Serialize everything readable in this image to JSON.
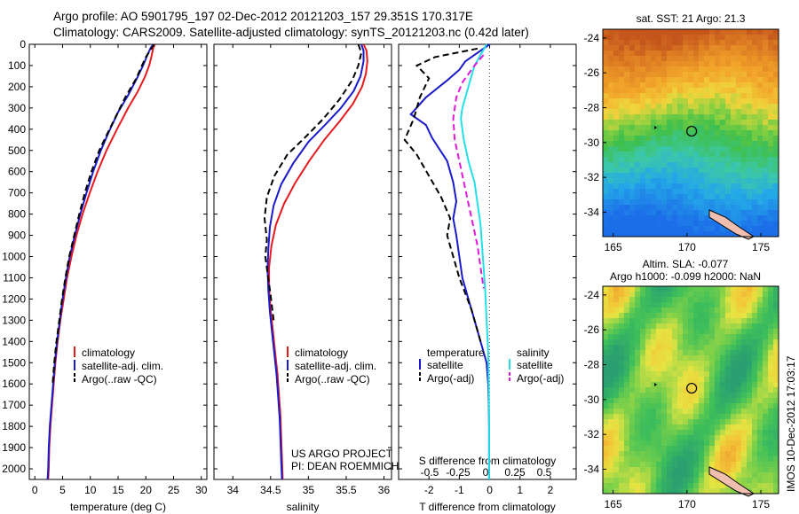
{
  "header": {
    "title_line1": "Argo profile: AO 5901795_197 02-Dec-2012 20121203_157 29.351S 170.317E",
    "title_line2": "Climatology: CARS2009. Satellite-adjusted climatology: synTS_20121203.nc (0.42d later)"
  },
  "footer": {
    "project_line1": "US ARGO PROJECT",
    "project_line2": "PI: DEAN ROEMMICH",
    "stamp": "IMOS 10-Dec-2012 17:03:17"
  },
  "colors": {
    "climatology": "#e8191e",
    "satellite": "#1a1acb",
    "argo": "#000000",
    "sal_satellite": "#22e0e6",
    "sal_argo": "#e01ad8",
    "axis": "#000000",
    "land": "#f0bfb0"
  },
  "chart_data": [
    {
      "type": "line",
      "xlabel": "temperature (deg C)",
      "ylabel": "",
      "xlim": [
        -1,
        31
      ],
      "ylim": [
        2050,
        0
      ],
      "xticks": [
        0,
        5,
        10,
        15,
        20,
        25,
        30
      ],
      "yticks": [
        0,
        100,
        200,
        300,
        400,
        500,
        600,
        700,
        800,
        900,
        1000,
        1100,
        1200,
        1300,
        1400,
        1500,
        1600,
        1700,
        1800,
        1900,
        2000
      ],
      "legend": [
        "climatology",
        "satellite-adj. clim.",
        "Argo(..raw -QC)"
      ],
      "legend_position": "lower-right",
      "series": [
        {
          "name": "climatology",
          "style": "solid",
          "points": [
            [
              21.6,
              0
            ],
            [
              21.3,
              20
            ],
            [
              21.0,
              60
            ],
            [
              20.6,
              100
            ],
            [
              19.9,
              150
            ],
            [
              18.6,
              220
            ],
            [
              16.8,
              300
            ],
            [
              14.8,
              400
            ],
            [
              12.9,
              500
            ],
            [
              11.3,
              600
            ],
            [
              9.9,
              700
            ],
            [
              8.6,
              800
            ],
            [
              7.5,
              900
            ],
            [
              6.6,
              1000
            ],
            [
              5.8,
              1100
            ],
            [
              5.2,
              1200
            ],
            [
              4.6,
              1300
            ],
            [
              4.1,
              1400
            ],
            [
              3.7,
              1500
            ],
            [
              3.4,
              1600
            ],
            [
              3.1,
              1700
            ],
            [
              2.8,
              1800
            ],
            [
              2.6,
              1900
            ],
            [
              2.5,
              2000
            ],
            [
              2.4,
              2050
            ]
          ]
        },
        {
          "name": "satellite-adj. clim.",
          "style": "solid",
          "points": [
            [
              21.3,
              0
            ],
            [
              20.8,
              20
            ],
            [
              20.3,
              50
            ],
            [
              19.5,
              100
            ],
            [
              18.4,
              160
            ],
            [
              16.8,
              240
            ],
            [
              15.0,
              320
            ],
            [
              13.2,
              420
            ],
            [
              11.9,
              500
            ],
            [
              10.5,
              600
            ],
            [
              9.3,
              700
            ],
            [
              8.2,
              800
            ],
            [
              7.2,
              900
            ],
            [
              6.3,
              1000
            ],
            [
              5.6,
              1100
            ],
            [
              5.0,
              1200
            ],
            [
              4.5,
              1300
            ],
            [
              4.0,
              1400
            ],
            [
              3.6,
              1500
            ],
            [
              3.3,
              1600
            ],
            [
              3.0,
              1700
            ],
            [
              2.7,
              1800
            ],
            [
              2.5,
              1900
            ],
            [
              2.4,
              2000
            ],
            [
              2.3,
              2050
            ]
          ]
        },
        {
          "name": "Argo(..raw -QC)",
          "style": "dash",
          "points": [
            [
              21.5,
              0
            ],
            [
              21.0,
              20
            ],
            [
              20.0,
              60
            ],
            [
              19.3,
              100
            ],
            [
              18.3,
              160
            ],
            [
              16.3,
              250
            ],
            [
              14.6,
              340
            ],
            [
              12.9,
              430
            ],
            [
              11.6,
              500
            ],
            [
              10.2,
              600
            ],
            [
              9.0,
              700
            ],
            [
              8.0,
              800
            ],
            [
              7.1,
              900
            ],
            [
              6.2,
              1000
            ],
            [
              5.5,
              1100
            ],
            [
              4.9,
              1200
            ],
            [
              4.4,
              1300
            ],
            [
              3.9,
              1400
            ],
            [
              3.5,
              1500
            ],
            [
              3.2,
              1600
            ]
          ]
        }
      ]
    },
    {
      "type": "line",
      "xlabel": "salinity",
      "ylabel": "",
      "xlim": [
        33.75,
        36.1
      ],
      "ylim": [
        2050,
        0
      ],
      "xticks": [
        34,
        34.5,
        35,
        35.5,
        36
      ],
      "legend": [
        "climatology",
        "satellite-adj. clim.",
        "Argo(..raw -QC)"
      ],
      "legend_position": "lower-right",
      "series": [
        {
          "name": "climatology",
          "style": "solid",
          "points": [
            [
              35.73,
              0
            ],
            [
              35.77,
              30
            ],
            [
              35.78,
              80
            ],
            [
              35.76,
              140
            ],
            [
              35.71,
              200
            ],
            [
              35.59,
              280
            ],
            [
              35.42,
              360
            ],
            [
              35.21,
              450
            ],
            [
              35.01,
              550
            ],
            [
              34.83,
              650
            ],
            [
              34.68,
              750
            ],
            [
              34.57,
              850
            ],
            [
              34.51,
              950
            ],
            [
              34.48,
              1050
            ],
            [
              34.48,
              1150
            ],
            [
              34.5,
              1250
            ],
            [
              34.53,
              1350
            ],
            [
              34.56,
              1450
            ],
            [
              34.59,
              1550
            ],
            [
              34.61,
              1650
            ],
            [
              34.63,
              1750
            ],
            [
              34.64,
              1850
            ],
            [
              34.65,
              1950
            ],
            [
              34.66,
              2050
            ]
          ]
        },
        {
          "name": "satellite-adj. clim.",
          "style": "solid",
          "points": [
            [
              35.7,
              0
            ],
            [
              35.73,
              30
            ],
            [
              35.73,
              80
            ],
            [
              35.69,
              150
            ],
            [
              35.6,
              220
            ],
            [
              35.43,
              300
            ],
            [
              35.22,
              380
            ],
            [
              35.0,
              460
            ],
            [
              34.8,
              560
            ],
            [
              34.64,
              660
            ],
            [
              34.54,
              760
            ],
            [
              34.49,
              860
            ],
            [
              34.47,
              960
            ],
            [
              34.46,
              1060
            ],
            [
              34.47,
              1160
            ],
            [
              34.49,
              1260
            ],
            [
              34.52,
              1360
            ],
            [
              34.55,
              1460
            ],
            [
              34.58,
              1560
            ],
            [
              34.6,
              1660
            ],
            [
              34.62,
              1760
            ],
            [
              34.63,
              1860
            ],
            [
              34.64,
              1960
            ],
            [
              34.65,
              2050
            ]
          ]
        },
        {
          "name": "Argo(..raw -QC)",
          "style": "dash",
          "points": [
            [
              35.66,
              0
            ],
            [
              35.7,
              40
            ],
            [
              35.66,
              100
            ],
            [
              35.58,
              170
            ],
            [
              35.41,
              260
            ],
            [
              35.2,
              350
            ],
            [
              34.98,
              430
            ],
            [
              34.72,
              520
            ],
            [
              34.55,
              620
            ],
            [
              34.45,
              720
            ],
            [
              34.42,
              820
            ],
            [
              34.45,
              920
            ],
            [
              34.43,
              1000
            ],
            [
              34.46,
              1080
            ],
            [
              34.5,
              1180
            ],
            [
              34.54,
              1300
            ]
          ]
        }
      ]
    },
    {
      "type": "line",
      "xlabel": "T difference from climatology",
      "xlabel_top": "S difference from climatology",
      "ylabel": "",
      "xlim": [
        -3,
        2.85
      ],
      "ylim": [
        2050,
        0
      ],
      "xticks": [
        -2,
        -1,
        0,
        1,
        2
      ],
      "xticks_s_labels": [
        "-0.5",
        "-0.25",
        "0",
        "0.25",
        "0.5"
      ],
      "zero_line": "dotted",
      "legend_title_temperature": "temperature",
      "legend_title_salinity": "salinity",
      "legend": [
        "satellite",
        "Argo(-adj)",
        "satellite",
        "Argo(-adj)"
      ],
      "legend_position": "lower-right",
      "series": [
        {
          "name": "satellite",
          "group": "temperature",
          "style": "solid",
          "points": [
            [
              0.0,
              0
            ],
            [
              -0.3,
              30
            ],
            [
              -0.8,
              80
            ],
            [
              -1.0,
              120
            ],
            [
              -1.4,
              170
            ],
            [
              -2.1,
              250
            ],
            [
              -2.6,
              330
            ],
            [
              -2.1,
              380
            ],
            [
              -1.9,
              440
            ],
            [
              -1.4,
              550
            ],
            [
              -1.2,
              650
            ],
            [
              -1.1,
              740
            ],
            [
              -1.2,
              820
            ],
            [
              -1.1,
              900
            ],
            [
              -1.0,
              1000
            ],
            [
              -0.9,
              1100
            ],
            [
              -0.7,
              1200
            ],
            [
              -0.5,
              1300
            ],
            [
              -0.3,
              1400
            ],
            [
              -0.1,
              1500
            ],
            [
              -0.05,
              1600
            ],
            [
              -0.03,
              1700
            ],
            [
              -0.02,
              1800
            ],
            [
              -0.02,
              1900
            ],
            [
              -0.02,
              2050
            ]
          ]
        },
        {
          "name": "Argo(-adj)",
          "group": "temperature",
          "style": "dash",
          "points": [
            [
              -0.4,
              20
            ],
            [
              -1.8,
              60
            ],
            [
              -2.4,
              100
            ],
            [
              -2.0,
              160
            ],
            [
              -2.3,
              250
            ],
            [
              -2.5,
              350
            ],
            [
              -2.8,
              450
            ],
            [
              -2.4,
              520
            ],
            [
              -2.0,
              620
            ],
            [
              -1.6,
              720
            ],
            [
              -1.3,
              820
            ],
            [
              -1.4,
              900
            ],
            [
              -1.2,
              1000
            ],
            [
              -1.0,
              1100
            ],
            [
              -0.6,
              1250
            ],
            [
              -0.3,
              1400
            ]
          ]
        },
        {
          "name": "satellite",
          "group": "salinity",
          "style": "solid",
          "points": [
            [
              -0.1,
              0
            ],
            [
              -0.3,
              50
            ],
            [
              -0.5,
              100
            ],
            [
              -0.7,
              200
            ],
            [
              -0.9,
              300
            ],
            [
              -0.95,
              350
            ],
            [
              -0.85,
              450
            ],
            [
              -0.7,
              550
            ],
            [
              -0.5,
              650
            ],
            [
              -0.4,
              750
            ],
            [
              -0.3,
              850
            ],
            [
              -0.25,
              950
            ],
            [
              -0.2,
              1050
            ],
            [
              -0.15,
              1150
            ],
            [
              -0.1,
              1300
            ],
            [
              -0.05,
              1450
            ],
            [
              -0.03,
              1600
            ],
            [
              -0.02,
              1800
            ],
            [
              -0.02,
              2050
            ]
          ]
        },
        {
          "name": "Argo(-adj)",
          "group": "salinity",
          "style": "dash",
          "points": [
            [
              -0.2,
              50
            ],
            [
              -0.5,
              100
            ],
            [
              -0.9,
              180
            ],
            [
              -1.1,
              250
            ],
            [
              -1.2,
              350
            ],
            [
              -1.15,
              450
            ],
            [
              -1.0,
              550
            ],
            [
              -0.85,
              650
            ],
            [
              -0.7,
              750
            ],
            [
              -0.55,
              850
            ],
            [
              -0.4,
              950
            ],
            [
              -0.3,
              1050
            ],
            [
              -0.2,
              1150
            ]
          ]
        }
      ]
    }
  ],
  "maps": [
    {
      "title": "sat. SST: 21 Argo: 21.3",
      "title2": "",
      "xticks": [
        "165",
        "170",
        "175"
      ],
      "yticks": [
        "-24",
        "-26",
        "-28",
        "-30",
        "-32",
        "-34"
      ],
      "palette": "sst"
    },
    {
      "title": "Altim. SLA: -0.077",
      "title2": "Argo h1000: -0.099 h2000: NaN",
      "xticks": [
        "165",
        "170",
        "175"
      ],
      "yticks": [
        "-24",
        "-26",
        "-28",
        "-30",
        "-32",
        "-34"
      ],
      "palette": "sla"
    }
  ]
}
